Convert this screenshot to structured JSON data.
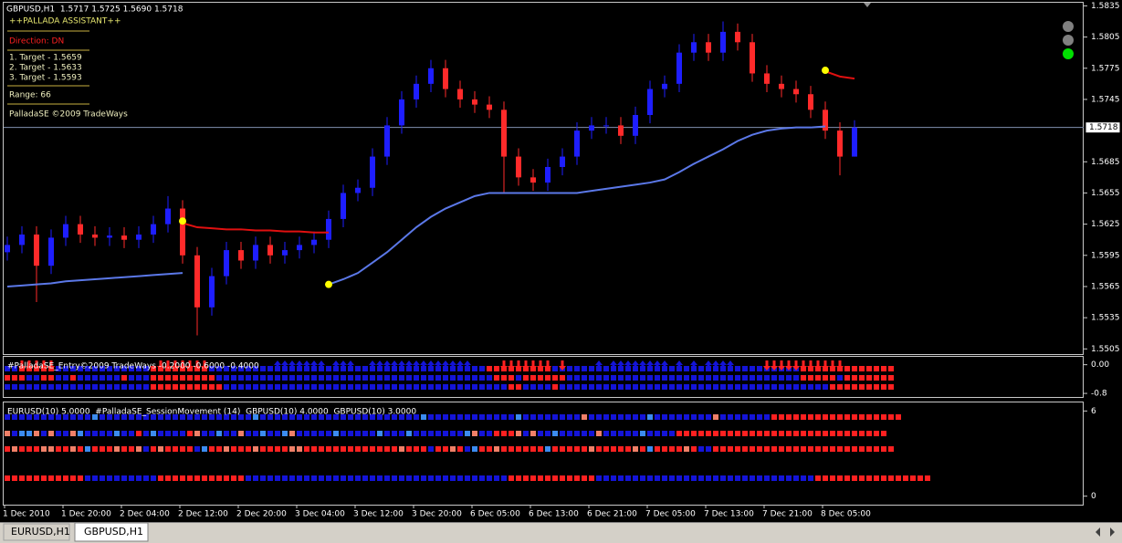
{
  "chart_data": {
    "type": "candlestick",
    "title": "GBPUSD,H1  1.5717 1.5725 1.5690 1.5718",
    "categories": [
      "1 Dec 2010",
      null,
      null,
      null,
      "1 Dec 20:00",
      null,
      null,
      null,
      "2 Dec 04:00",
      null,
      null,
      null,
      "2 Dec 12:00",
      null,
      null,
      null,
      "2 Dec 20:00",
      null,
      null,
      null,
      "3 Dec 04:00",
      null,
      null,
      null,
      "3 Dec 12:00",
      null,
      null,
      null,
      "3 Dec 20:00",
      null,
      null,
      null,
      "6 Dec 05:00",
      null,
      null,
      null,
      "6 Dec 13:00",
      null,
      null,
      null,
      "6 Dec 21:00",
      null,
      null,
      null,
      "7 Dec 05:00",
      null,
      null,
      null,
      "7 Dec 13:00",
      null,
      null,
      null,
      "7 Dec 21:00",
      null,
      null,
      null,
      "8 Dec 05:00",
      null,
      null
    ],
    "open": [
      1.5598,
      1.5605,
      1.5615,
      1.5585,
      1.5612,
      1.5625,
      1.5615,
      1.5612,
      1.5614,
      1.561,
      1.5615,
      1.5625,
      1.564,
      1.5595,
      1.5545,
      1.5575,
      1.56,
      1.559,
      1.5605,
      1.5595,
      1.56,
      1.5605,
      1.561,
      1.563,
      1.5655,
      1.566,
      1.569,
      1.572,
      1.5745,
      1.576,
      1.5775,
      1.5755,
      1.5745,
      1.574,
      1.5735,
      1.569,
      1.567,
      1.5665,
      1.568,
      1.569,
      1.5715,
      1.572,
      1.572,
      1.571,
      1.573,
      1.5755,
      1.576,
      1.579,
      1.58,
      1.579,
      1.581,
      1.58,
      1.577,
      1.576,
      1.5755,
      1.575,
      1.5735,
      1.5715,
      1.569
    ],
    "high": [
      1.5613,
      1.5623,
      1.5623,
      1.562,
      1.5633,
      1.5633,
      1.5623,
      1.5622,
      1.5622,
      1.5623,
      1.5633,
      1.5652,
      1.5648,
      1.5603,
      1.5583,
      1.5608,
      1.5608,
      1.5613,
      1.5613,
      1.5608,
      1.5613,
      1.5618,
      1.5638,
      1.5663,
      1.5668,
      1.5698,
      1.5728,
      1.5753,
      1.5768,
      1.5783,
      1.5783,
      1.5763,
      1.5753,
      1.5748,
      1.5743,
      1.5698,
      1.5678,
      1.5688,
      1.5698,
      1.5723,
      1.5728,
      1.5728,
      1.5728,
      1.5738,
      1.5763,
      1.5768,
      1.5798,
      1.5808,
      1.5808,
      1.582,
      1.5818,
      1.5808,
      1.5778,
      1.5768,
      1.5763,
      1.5758,
      1.5743,
      1.5723,
      1.5725
    ],
    "low": [
      1.559,
      1.5597,
      1.555,
      1.5577,
      1.5604,
      1.5607,
      1.5604,
      1.5604,
      1.5602,
      1.5602,
      1.5607,
      1.5617,
      1.5587,
      1.5518,
      1.5537,
      1.5567,
      1.5582,
      1.5582,
      1.5587,
      1.5587,
      1.5592,
      1.5597,
      1.5602,
      1.5622,
      1.5647,
      1.5652,
      1.5682,
      1.5712,
      1.5737,
      1.5752,
      1.5747,
      1.5737,
      1.5732,
      1.5727,
      1.5655,
      1.5662,
      1.5657,
      1.5657,
      1.5672,
      1.5682,
      1.5707,
      1.5712,
      1.5702,
      1.5702,
      1.5722,
      1.5747,
      1.5752,
      1.5782,
      1.5782,
      1.5782,
      1.5792,
      1.5762,
      1.5752,
      1.5747,
      1.5742,
      1.5727,
      1.5707,
      1.5672,
      1.569
    ],
    "close": [
      1.5605,
      1.5615,
      1.5585,
      1.5612,
      1.5625,
      1.5615,
      1.5612,
      1.5614,
      1.561,
      1.5615,
      1.5625,
      1.564,
      1.5595,
      1.5545,
      1.5575,
      1.56,
      1.559,
      1.5605,
      1.5595,
      1.56,
      1.5605,
      1.561,
      1.563,
      1.5655,
      1.566,
      1.569,
      1.572,
      1.5745,
      1.576,
      1.5775,
      1.5755,
      1.5745,
      1.574,
      1.5735,
      1.569,
      1.567,
      1.5665,
      1.568,
      1.569,
      1.5715,
      1.572,
      1.572,
      1.571,
      1.573,
      1.5755,
      1.576,
      1.579,
      1.58,
      1.579,
      1.581,
      1.58,
      1.577,
      1.576,
      1.5755,
      1.575,
      1.5735,
      1.5715,
      1.569,
      1.5718
    ],
    "up_color": "#1e1eff",
    "down_color": "#ff2a2a",
    "series": [
      {
        "color": "#5b78e8",
        "values": [
          1.5565,
          1.5566,
          1.5567,
          1.5568,
          1.557,
          1.5571,
          1.5572,
          1.5573,
          1.5574,
          1.5575,
          1.5576,
          1.5577,
          1.5578,
          null,
          null,
          null,
          null,
          null,
          null,
          null,
          null,
          null,
          1.5567,
          1.5572,
          1.5578,
          1.5588,
          1.5598,
          1.561,
          1.5622,
          1.5632,
          1.564,
          1.5646,
          1.5652,
          1.5655,
          1.5655,
          1.5655,
          1.5655,
          1.5655,
          1.5655,
          1.5655,
          1.5657,
          1.5659,
          1.5661,
          1.5663,
          1.5665,
          1.5668,
          1.5675,
          1.5683,
          1.569,
          1.5697,
          1.5705,
          1.5711,
          1.5715,
          1.5717,
          1.5718,
          1.5718,
          1.5719,
          null,
          null
        ]
      },
      {
        "color": "#e01010",
        "values": [
          null,
          null,
          null,
          null,
          null,
          null,
          null,
          null,
          null,
          null,
          null,
          null,
          1.5626,
          1.5622,
          1.5621,
          1.562,
          1.562,
          1.5619,
          1.5619,
          1.5618,
          1.5618,
          1.5617,
          1.5617,
          null,
          null,
          null,
          null,
          null,
          null,
          null,
          null,
          null,
          null,
          null,
          null,
          null,
          null,
          null,
          null,
          null,
          null,
          null,
          null,
          null,
          null,
          null,
          null,
          null,
          null,
          null,
          null,
          null,
          null,
          null,
          null,
          null,
          1.5772,
          1.5767,
          1.5765
        ]
      }
    ],
    "signal_points": {
      "color": "#ffff00",
      "index": [
        12,
        22,
        56
      ],
      "values": [
        1.5628,
        1.5567,
        1.5773
      ]
    },
    "ylim": [
      1.55,
      1.5838
    ],
    "yticks": [
      1.5835,
      1.5805,
      1.5775,
      1.5745,
      1.5685,
      1.5655,
      1.5625,
      1.5595,
      1.5565,
      1.5535,
      1.5505
    ],
    "current_price": 1.5718
  },
  "assistant": {
    "title": "++PALLADA ASSISTANT++",
    "direction": "Direction: DN",
    "targets": [
      "1. Target - 1.5659",
      "2. Target - 1.5633",
      "3. Target - 1.5593"
    ],
    "range": "Range: 66",
    "copyright": "PalladaSE ©2009 TradeWays"
  },
  "cell_colors": {
    "B": "#1414d8",
    "L": "#3c8cf0",
    "R": "#ff2020",
    "S": "#f08068"
  },
  "panels": [
    {
      "label": "#PalladaSE_Entry©2009 TradeWays -0.2000 -0.6000 -0.4000",
      "ylim": [
        -0.9,
        0.22
      ],
      "yticks": [
        {
          "value": 0,
          "label": "0.00"
        },
        -0.8
      ],
      "arrows": "..DDDDD..............DDDDDDD.........UUUUUUU.UUU..UUUUUUUUUUUUUU....DDDDDDD.D....U.UUUUUUUU.U.U.UUUU....DDDDDDDDDDD..",
      "rows": [
        "BBRRRRRBBBBBBBBBBBBBRRRRRRRRBBBBBBBBBBBBBBBBBBBBBBBBBBBBBBBBBBBBBBRRRRRRRRRBBBBBBBBBBBBBBBBBBBBBBBBBBBBBBBBBBRRRRRRRRRRRRR",
        "RRRBBRRBBRBBBBBBRBBBRRRRRRRRRBBBBBBBBBBBBBBBBBBBBBBBBBBBBBBBBBBBBBBRRRBRRRRRRBBBBBBBBBBBBBBBBBBBBBBBBBBBBBBBBRRRRRBRRRRRRR",
        "BBBBBBBBBBBBBBBBBBBBRRRRRRRRRRBBBBBBBBBBBBBBBBBBBBBBBBBBBBBBBBBBBBBBBRRBBBBRBBBBBBBBBBBBBBBBBBBBBBBBBBBBBBBBBBBBBRRRRRRRRR"
      ]
    },
    {
      "label": "EURUSD(10) 5.0000  #PalladaSE_SessionMovement (14)  GBPUSD(10) 4.0000  GBPUSD(10) 3.0000",
      "ylim": [
        -0.6,
        6.6
      ],
      "yticks": [
        6,
        0
      ],
      "rows": [
        "BBBBBBBBBBBBLBBBBBBBBBBBBBBBBBBBBBLBBBBBBBBBBBBBBBBBBBBBBLBBBBBBBBBBBBLBBBBBBBBSBBBBBBBBLBBBBBBBBSBBBBBBBRRRRRRRRRRRRRRRRRR",
        "SBLLSBSBBSLBBBBLBBRBLBBBBRSBBLBBSBBLBBLSBBBBBLBBBBBLBBBLBBBBBBBLSBBRRRSBSBBLBBBBBSBBBBBLBBBBRRRRRRRRRRRRRRRRRRRRRRRRRRRRR",
        "RSRRRSSRRSRLRRRSRRSBRSRRRRBLRRSRRRSRRRRSSRRRRRRRRRRRRRSRRRBRRSRBLRRSRRRRRRLRRRRRSRRRRRSRLRRRRSRBBRRRRRRRRRRRRRRRRRRRRRRRRR",
        "RRRRRRRRRRRBBBBBBBBBBRRRRRRRRRRRRBBBBBBBBBBBBBBBBBBBBBBBBBBBBBBBBBBBBRRRRRRRRRRRRBBBBBBBBBBBBBBBBBBBBBBBBBBBBBBRRRRRRRRRRRRRRRR"
      ]
    }
  ],
  "tabs": [
    "EURUSD,H1",
    "GBPUSD,H1"
  ]
}
